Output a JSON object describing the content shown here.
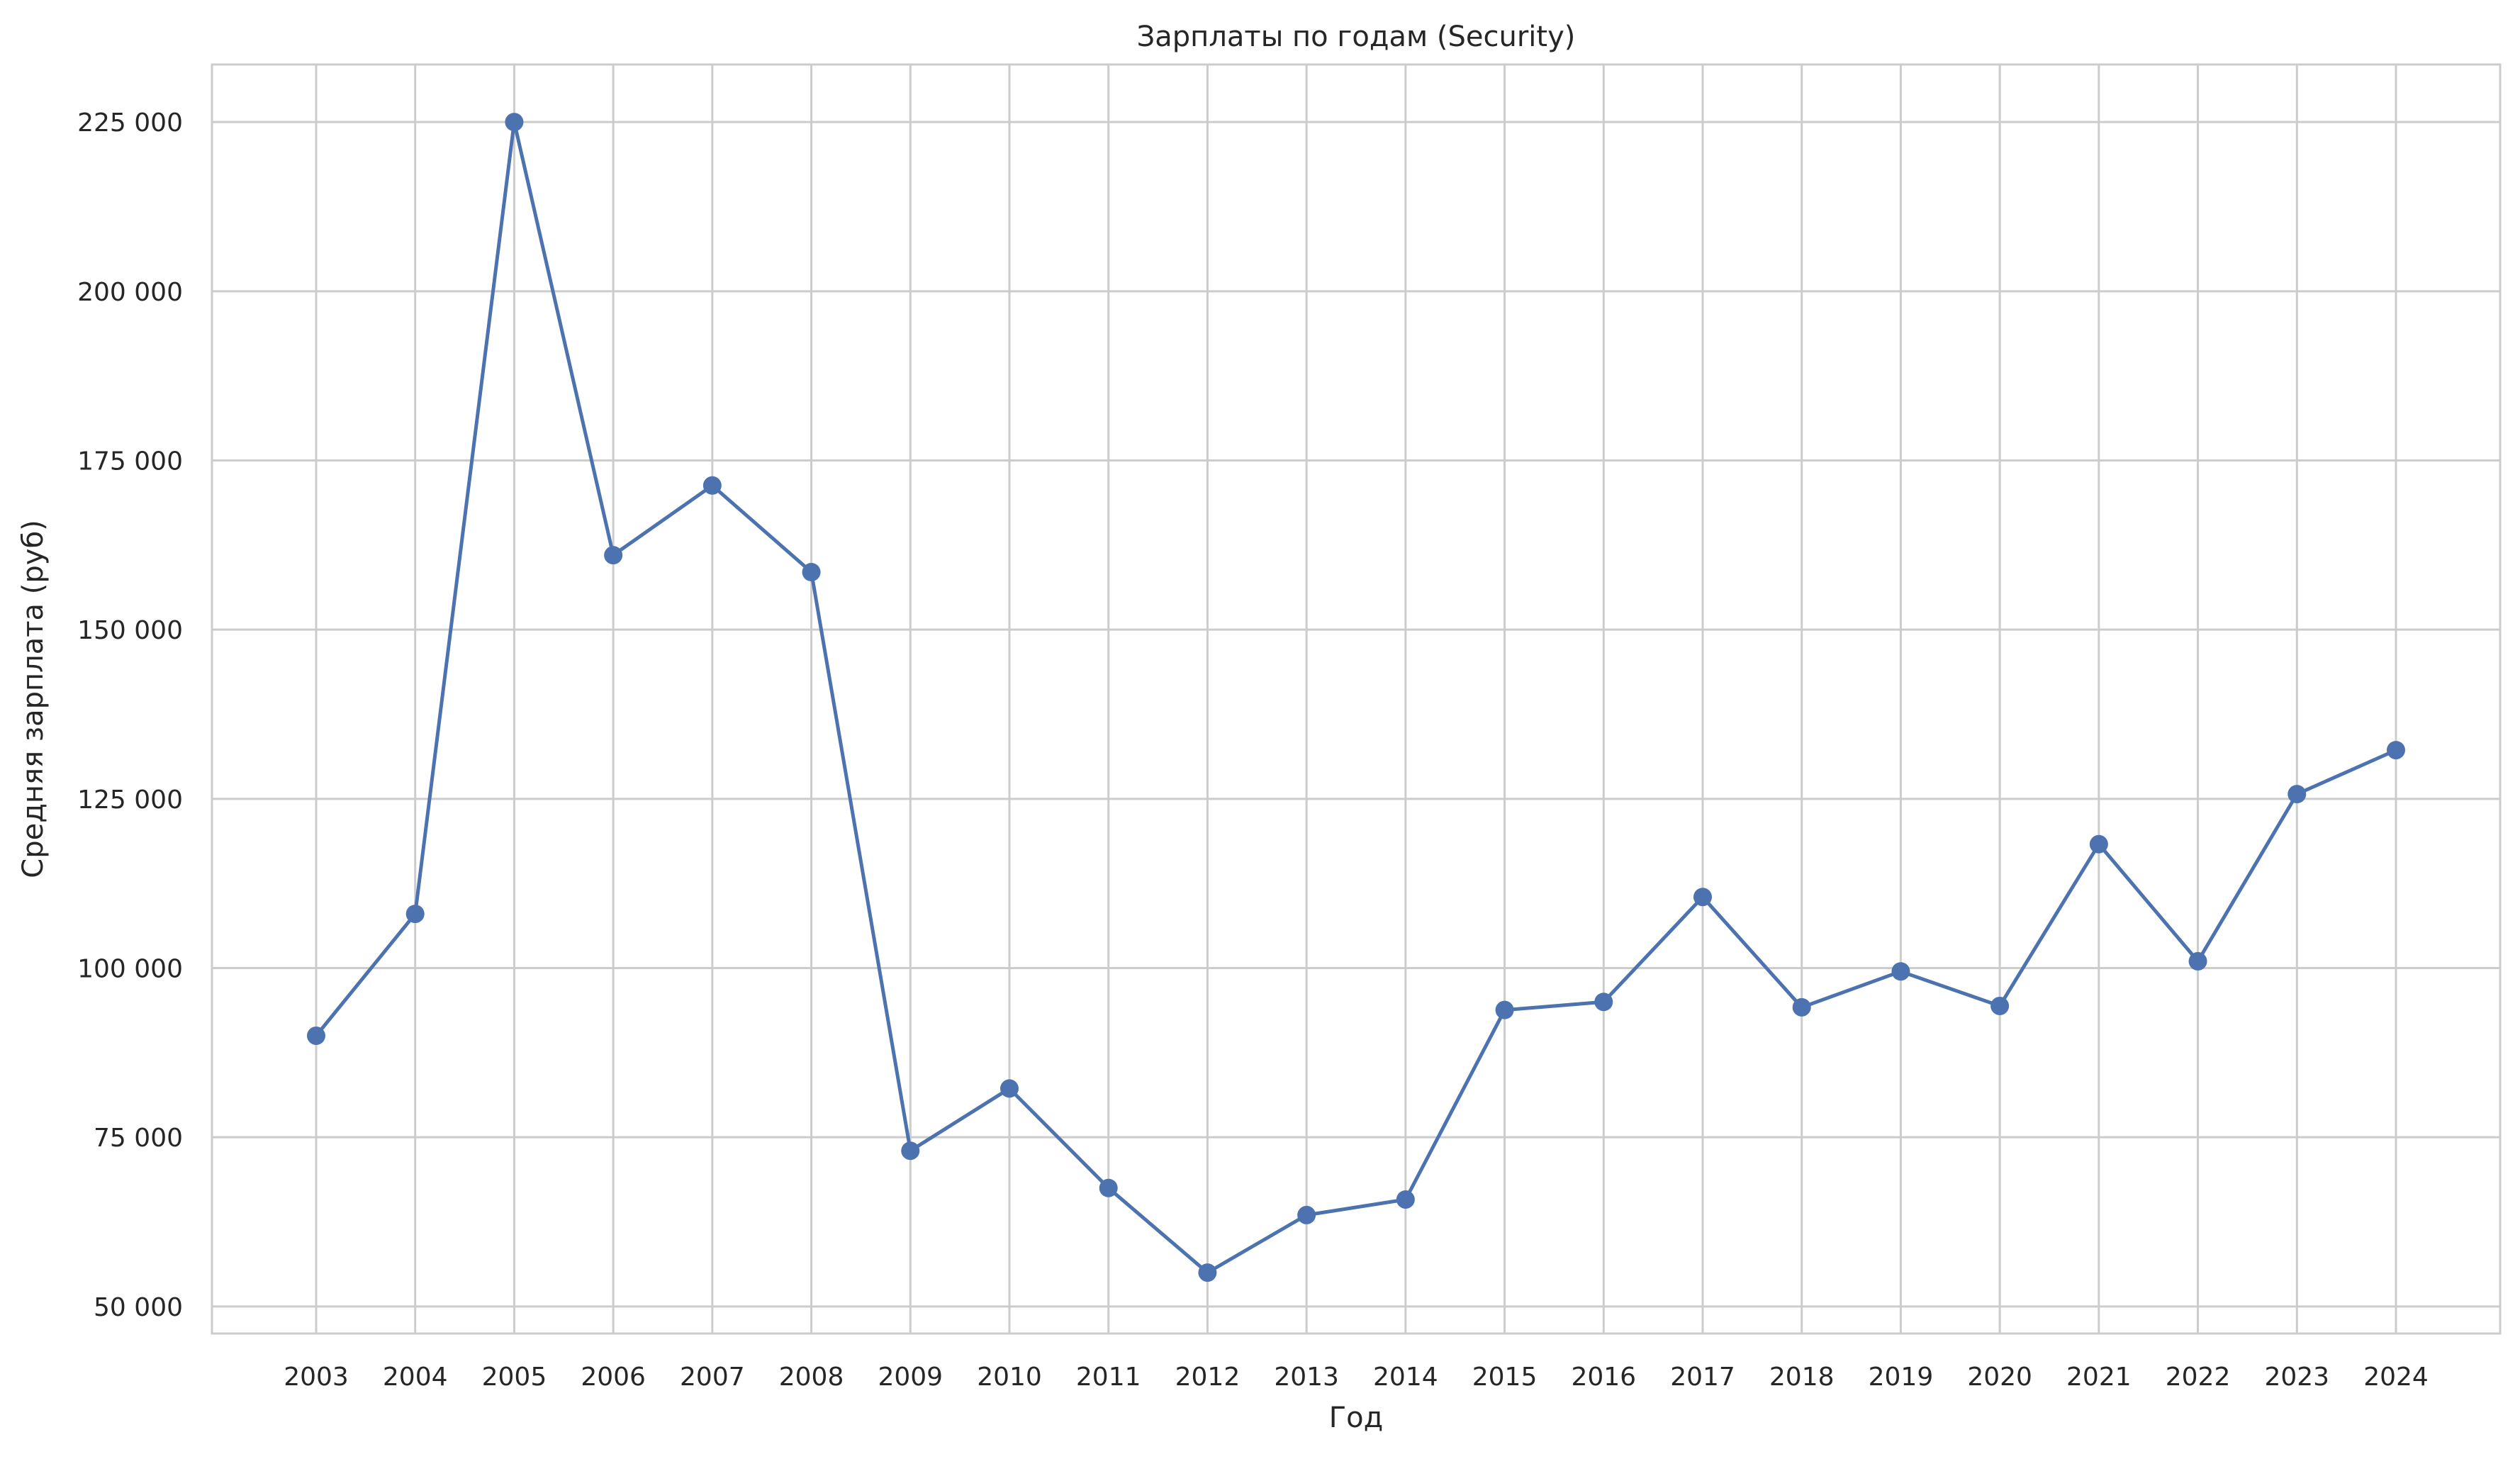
{
  "chart_data": {
    "type": "line",
    "title": "Зарплаты по годам (Security)",
    "xlabel": "Год",
    "ylabel": "Средняя зарплата (руб)",
    "x": [
      "2003",
      "2004",
      "2005",
      "2006",
      "2007",
      "2008",
      "2009",
      "2010",
      "2011",
      "2012",
      "2013",
      "2014",
      "2015",
      "2016",
      "2017",
      "2018",
      "2019",
      "2020",
      "2021",
      "2022",
      "2023",
      "2024"
    ],
    "series": [
      {
        "values": [
          90000,
          108000,
          225000,
          161000,
          171300,
          158500,
          73000,
          82200,
          67500,
          55000,
          63500,
          65800,
          93800,
          95000,
          110500,
          94200,
          99500,
          94400,
          118300,
          101000,
          125700,
          132200
        ]
      }
    ],
    "yticks": [
      50000,
      75000,
      100000,
      125000,
      150000,
      175000,
      200000,
      225000
    ],
    "ytick_labels": [
      "50 000",
      "75 000",
      "100 000",
      "125 000",
      "150 000",
      "175 000",
      "200 000",
      "225 000"
    ],
    "ylim": [
      46000,
      233500
    ],
    "grid": true,
    "colors": {
      "line": "#4c72b0",
      "grid": "#cccccc",
      "frame": "#cccccc",
      "text": "#262626"
    }
  }
}
